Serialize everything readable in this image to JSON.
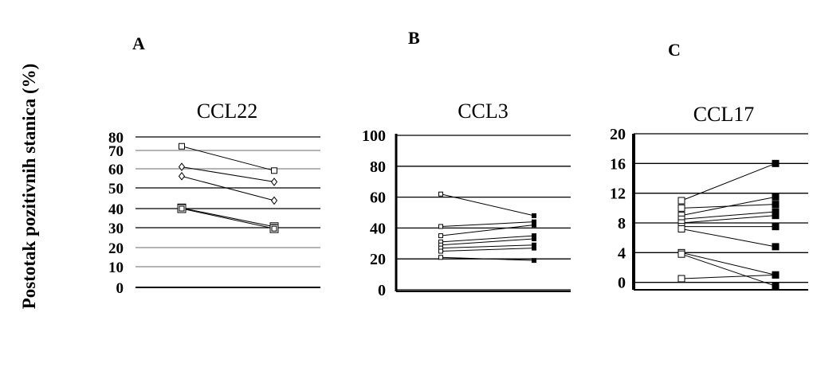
{
  "figure": {
    "ylabel": "Postotak  pozitivnih stanica (%)"
  },
  "chart_data": [
    {
      "type": "line",
      "panel_label": "A",
      "title": "CCL22",
      "xlabel": "",
      "ylabel": "",
      "ylim": [
        0,
        80
      ],
      "yticks": [
        0,
        10,
        20,
        30,
        40,
        50,
        60,
        70,
        80
      ],
      "grid": true,
      "x": [
        1,
        2
      ],
      "series": [
        {
          "values": [
            75,
            62
          ],
          "marker": "open-square"
        },
        {
          "values": [
            64,
            56
          ],
          "marker": "open-diamond"
        },
        {
          "values": [
            59,
            46
          ],
          "marker": "open-diamond"
        },
        {
          "values": [
            42,
            32
          ],
          "marker": "double-square"
        },
        {
          "values": [
            40,
            31
          ],
          "marker": "double-square"
        }
      ]
    },
    {
      "type": "line",
      "panel_label": "B",
      "title": "CCL3",
      "xlabel": "",
      "ylabel": "",
      "ylim": [
        0,
        100
      ],
      "yticks": [
        0,
        20,
        40,
        60,
        80,
        100
      ],
      "grid": true,
      "x": [
        1,
        2
      ],
      "series": [
        {
          "values": [
            62,
            48
          ],
          "marker": "open-square"
        },
        {
          "values": [
            41,
            44
          ],
          "marker": "open-square"
        },
        {
          "values": [
            35,
            42
          ],
          "marker": "open-square"
        },
        {
          "values": [
            31,
            35
          ],
          "marker": "open-square"
        },
        {
          "values": [
            29,
            33
          ],
          "marker": "open-square"
        },
        {
          "values": [
            27,
            29
          ],
          "marker": "open-square"
        },
        {
          "values": [
            25,
            27
          ],
          "marker": "open-square"
        },
        {
          "values": [
            21,
            19
          ],
          "marker": "open-square"
        }
      ]
    },
    {
      "type": "line",
      "panel_label": "C",
      "title": "CCL17",
      "xlabel": "",
      "ylabel": "",
      "ylim": [
        -1,
        20
      ],
      "yticks": [
        0,
        4,
        8,
        12,
        16,
        20
      ],
      "grid": true,
      "x": [
        1,
        2
      ],
      "series": [
        {
          "values": [
            11,
            16
          ],
          "marker": "open-square"
        },
        {
          "values": [
            10,
            10.5
          ],
          "marker": "open-square"
        },
        {
          "values": [
            9,
            11.5
          ],
          "marker": "open-square"
        },
        {
          "values": [
            8.5,
            9.5
          ],
          "marker": "open-square"
        },
        {
          "values": [
            8,
            9
          ],
          "marker": "open-square"
        },
        {
          "values": [
            7.5,
            7.5
          ],
          "marker": "open-square"
        },
        {
          "values": [
            7.2,
            4.8
          ],
          "marker": "open-square"
        },
        {
          "values": [
            4,
            1
          ],
          "marker": "open-square"
        },
        {
          "values": [
            3.8,
            -0.5
          ],
          "marker": "open-square"
        },
        {
          "values": [
            0.5,
            1
          ],
          "marker": "open-square"
        }
      ]
    }
  ]
}
